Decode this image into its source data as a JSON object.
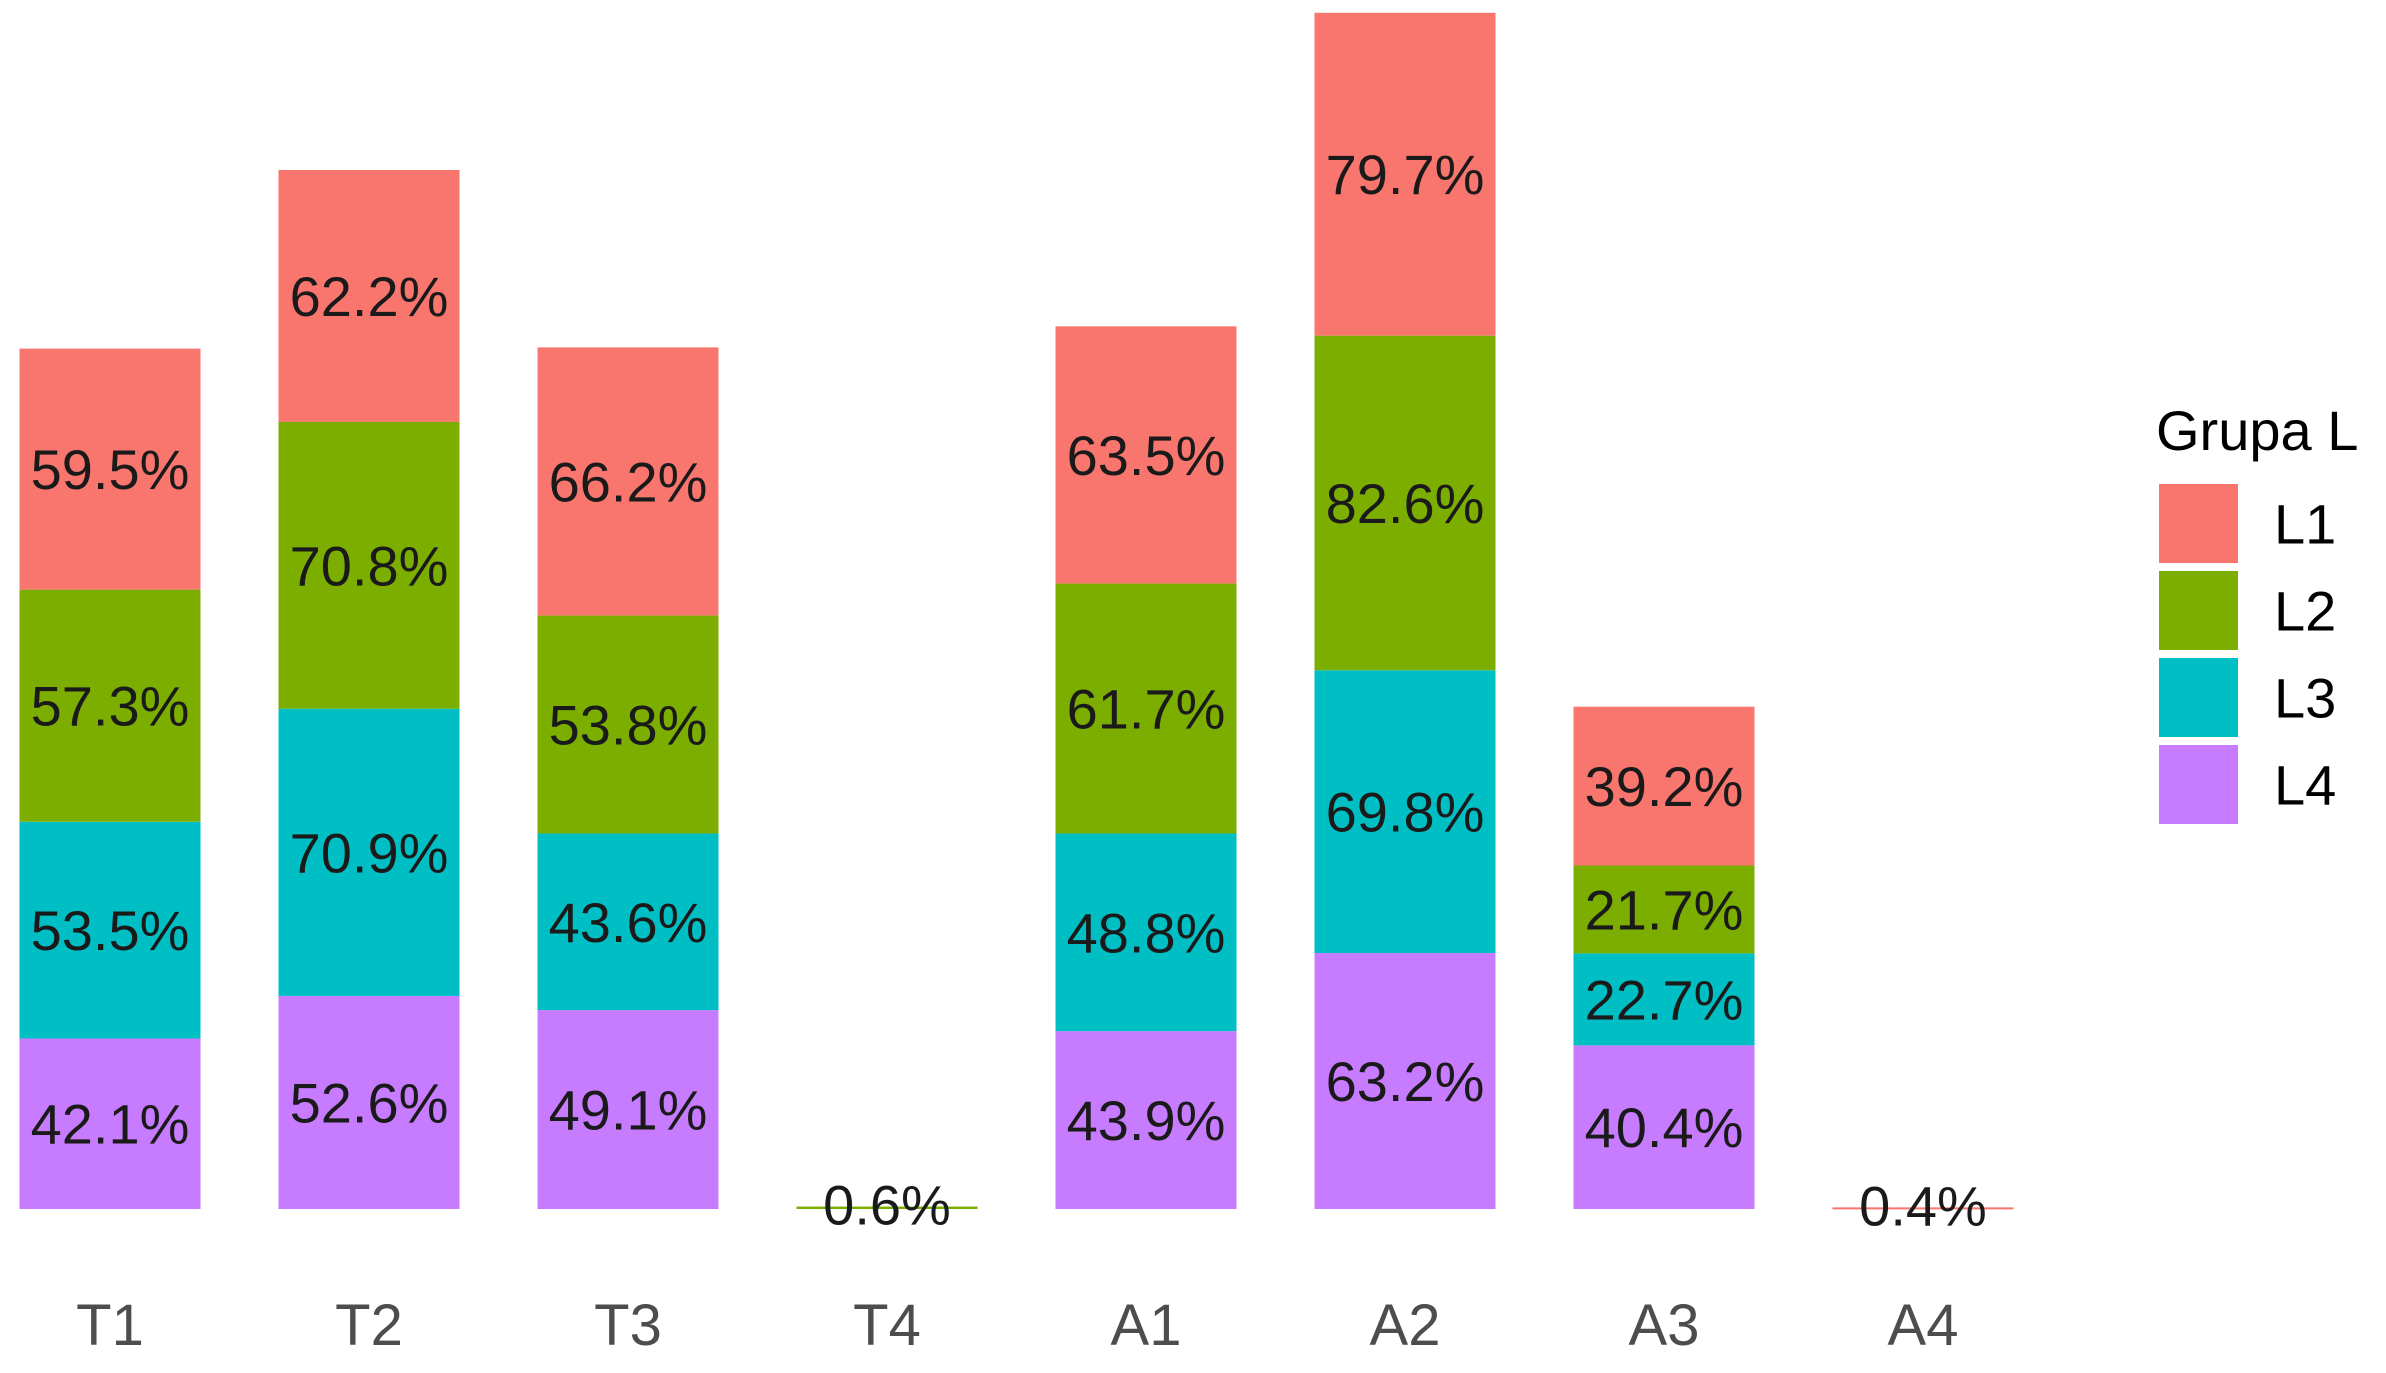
{
  "chart_data": {
    "type": "bar",
    "stacked": true,
    "categories": [
      "T1",
      "T2",
      "T3",
      "T4",
      "A1",
      "A2",
      "A3",
      "A4"
    ],
    "series": [
      {
        "name": "L4",
        "values": [
          42.1,
          52.6,
          49.1,
          0,
          43.9,
          63.2,
          40.4,
          0
        ],
        "color": "#C77CFF"
      },
      {
        "name": "L3",
        "values": [
          53.5,
          70.9,
          43.6,
          0,
          48.8,
          69.8,
          22.7,
          0
        ],
        "color": "#00BFC4"
      },
      {
        "name": "L2",
        "values": [
          57.3,
          70.8,
          53.8,
          0.6,
          61.7,
          82.6,
          21.7,
          0
        ],
        "color": "#7CAE00"
      },
      {
        "name": "L1",
        "values": [
          59.5,
          62.2,
          66.2,
          0,
          63.5,
          79.7,
          39.2,
          0.4
        ],
        "color": "#F8766D"
      }
    ],
    "labels": [
      [
        "42.1%",
        "52.6%",
        "49.1%",
        "",
        "43.9%",
        "63.2%",
        "40.4%",
        ""
      ],
      [
        "53.5%",
        "70.9%",
        "43.6%",
        "",
        "48.8%",
        "69.8%",
        "22.7%",
        ""
      ],
      [
        "57.3%",
        "70.8%",
        "53.8%",
        "0.6%",
        "61.7%",
        "82.6%",
        "21.7%",
        ""
      ],
      [
        "59.5%",
        "62.2%",
        "66.2%",
        "",
        "63.5%",
        "79.7%",
        "39.2%",
        "0.4%"
      ]
    ],
    "ylim": [
      0,
      295.5
    ],
    "grid": false,
    "xlabel": "",
    "ylabel": "",
    "legend": {
      "title": "Grupa L",
      "position": "right",
      "entries": [
        {
          "label": "L1",
          "color": "#F8766D"
        },
        {
          "label": "L2",
          "color": "#7CAE00"
        },
        {
          "label": "L3",
          "color": "#00BFC4"
        },
        {
          "label": "L4",
          "color": "#C77CFF"
        }
      ]
    }
  }
}
